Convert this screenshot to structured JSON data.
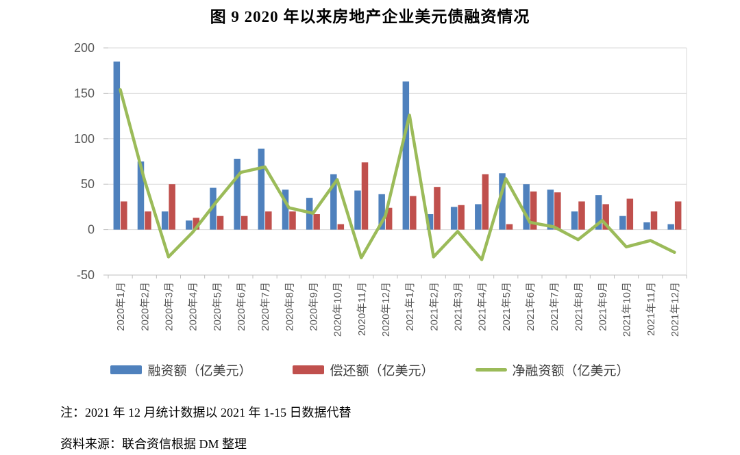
{
  "title": "图 9  2020 年以来房地产企业美元债融资情况",
  "chart_data": {
    "type": "combo",
    "categories": [
      "2020年1月",
      "2020年2月",
      "2020年3月",
      "2020年4月",
      "2020年5月",
      "2020年6月",
      "2020年7月",
      "2020年8月",
      "2020年9月",
      "2020年10月",
      "2020年11月",
      "2020年12月",
      "2021年1月",
      "2021年2月",
      "2021年3月",
      "2021年4月",
      "2021年5月",
      "2021年6月",
      "2021年7月",
      "2021年8月",
      "2021年9月",
      "2021年10月",
      "2021年11月",
      "2021年12月"
    ],
    "series": [
      {
        "name": "融资额（亿美元）",
        "type": "bar",
        "color": "#4F81BD",
        "values": [
          185,
          75,
          20,
          10,
          46,
          78,
          89,
          44,
          35,
          61,
          43,
          39,
          163,
          17,
          25,
          28,
          62,
          50,
          44,
          20,
          38,
          15,
          8,
          6
        ]
      },
      {
        "name": "偿还额（亿美元）",
        "type": "bar",
        "color": "#C0504D",
        "values": [
          31,
          20,
          50,
          13,
          15,
          15,
          20,
          20,
          17,
          6,
          74,
          24,
          37,
          47,
          27,
          61,
          6,
          42,
          41,
          31,
          28,
          34,
          20,
          31
        ]
      },
      {
        "name": "净融资额（亿美元）",
        "type": "line",
        "color": "#9BBB59",
        "values": [
          154,
          55,
          -30,
          -3,
          31,
          63,
          69,
          24,
          18,
          55,
          -31,
          15,
          126,
          -30,
          -2,
          -33,
          56,
          8,
          3,
          -11,
          10,
          -19,
          -12,
          -25
        ]
      }
    ],
    "ylim": [
      -50,
      200
    ],
    "yticks": [
      200,
      150,
      100,
      50,
      0,
      -50
    ],
    "grid": true,
    "legend_position": "bottom",
    "gridline_color": "#D9D9D9",
    "axis_line_color": "#BFBFBF",
    "axis_text_color": "#595959"
  },
  "notes": {
    "note": "注：2021 年 12 月统计数据以 2021 年 1-15 日数据代替",
    "source": "资料来源：联合资信根据 DM 整理"
  }
}
